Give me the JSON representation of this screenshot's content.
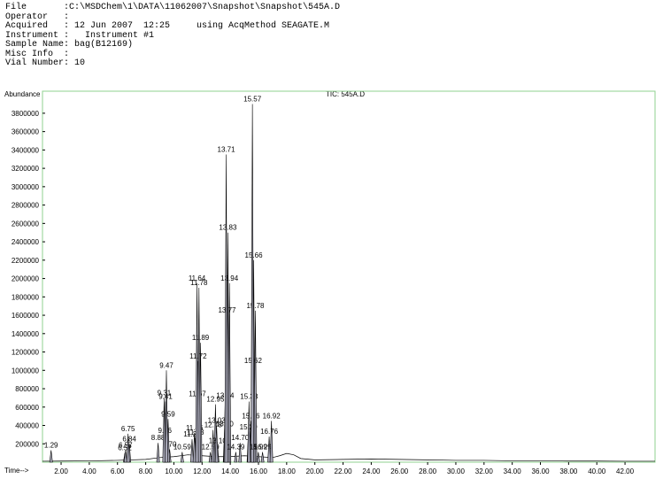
{
  "header": {
    "lines": [
      "File       :C:\\MSDChem\\1\\DATA\\11062007\\Snapshot\\Snapshot\\545A.D",
      "Operator   :",
      "Acquired   : 12 Jun 2007  12:25     using AcqMethod SEAGATE.M",
      "Instrument :   Instrument #1",
      "Sample Name: bag(B12169)",
      "Misc Info  :",
      "Vial Number: 10"
    ]
  },
  "chart_data": {
    "type": "line",
    "title": "TIC: 545A.D",
    "y_label": "Abundance",
    "x_label": "Time-->",
    "color": "#000000",
    "peak_fill": "#a8a8b8",
    "frame_color": "#8fd08f",
    "xlim": [
      0.68,
      44.13
    ],
    "ylim": [
      0,
      4040000
    ],
    "xticks": [
      {
        "value": 2,
        "label": "2.00"
      },
      {
        "value": 4,
        "label": "4.00"
      },
      {
        "value": 6,
        "label": "6.00"
      },
      {
        "value": 8,
        "label": "8.00"
      },
      {
        "value": 10,
        "label": "10.00"
      },
      {
        "value": 12,
        "label": "12.00"
      },
      {
        "value": 14,
        "label": "14.00"
      },
      {
        "value": 16,
        "label": "16.00"
      },
      {
        "value": 18,
        "label": "18.00"
      },
      {
        "value": 20,
        "label": "20.00"
      },
      {
        "value": 22,
        "label": "22.00"
      },
      {
        "value": 24,
        "label": "24.00"
      },
      {
        "value": 26,
        "label": "26.00"
      },
      {
        "value": 28,
        "label": "28.00"
      },
      {
        "value": 30,
        "label": "30.00"
      },
      {
        "value": 32,
        "label": "32.00"
      },
      {
        "value": 34,
        "label": "34.00"
      },
      {
        "value": 36,
        "label": "36.00"
      },
      {
        "value": 38,
        "label": "38.00"
      },
      {
        "value": 40,
        "label": "40.00"
      },
      {
        "value": 42,
        "label": "42.00"
      }
    ],
    "yticks": [
      200000,
      400000,
      600000,
      800000,
      1000000,
      1200000,
      1400000,
      1600000,
      1800000,
      2000000,
      2200000,
      2400000,
      2600000,
      2800000,
      3000000,
      3200000,
      3400000,
      3600000,
      3800000
    ],
    "x": [
      0.68,
      2,
      4,
      6,
      8,
      9,
      10,
      11,
      12,
      13,
      14,
      15,
      16,
      17,
      17.5,
      18,
      18.5,
      19,
      20,
      22,
      24,
      26,
      28,
      30,
      32,
      34,
      36,
      38,
      40,
      42,
      44.13
    ],
    "values": [
      10000,
      12000,
      14000,
      20000,
      30000,
      50000,
      60000,
      80000,
      70000,
      60000,
      60000,
      70000,
      60000,
      50000,
      70000,
      95000,
      80000,
      40000,
      25000,
      30000,
      35000,
      30000,
      25000,
      20000,
      20000,
      15000,
      15000,
      12000,
      12000,
      10000,
      10000
    ],
    "peaks": [
      {
        "label": "1.29",
        "x": 1.29,
        "y": 130000
      },
      {
        "label": "6.52",
        "x": 6.52,
        "y": 100000
      },
      {
        "label": "6.57",
        "x": 6.57,
        "y": 130000
      },
      {
        "label": "6.84",
        "x": 6.84,
        "y": 200000
      },
      {
        "label": "6.75",
        "x": 6.75,
        "y": 310000
      },
      {
        "label": "8.88",
        "x": 8.88,
        "y": 210000
      },
      {
        "label": "9.70",
        "x": 9.7,
        "y": 140000
      },
      {
        "label": "9.36",
        "x": 9.36,
        "y": 290000
      },
      {
        "label": "9.59",
        "x": 9.59,
        "y": 470000
      },
      {
        "label": "9.41",
        "x": 9.41,
        "y": 660000
      },
      {
        "label": "9.31",
        "x": 9.31,
        "y": 700000
      },
      {
        "label": "9.47",
        "x": 9.47,
        "y": 1000000
      },
      {
        "label": "10.59",
        "x": 10.59,
        "y": 110000
      },
      {
        "label": "11.29",
        "x": 11.29,
        "y": 250000
      },
      {
        "label": "11.53",
        "x": 11.53,
        "y": 270000
      },
      {
        "label": "11.46",
        "x": 11.46,
        "y": 320000
      },
      {
        "label": "11.67",
        "x": 11.67,
        "y": 690000
      },
      {
        "label": "11.72",
        "x": 11.72,
        "y": 1100000
      },
      {
        "label": "11.89",
        "x": 11.89,
        "y": 1300000
      },
      {
        "label": "11.78",
        "x": 11.78,
        "y": 1900000
      },
      {
        "label": "11.64",
        "x": 11.64,
        "y": 1950000
      },
      {
        "label": "12.59",
        "x": 12.59,
        "y": 110000
      },
      {
        "label": "12.78",
        "x": 12.78,
        "y": 350000
      },
      {
        "label": "12.95",
        "x": 12.95,
        "y": 630000
      },
      {
        "label": "13.10",
        "x": 13.1,
        "y": 180000
      },
      {
        "label": "13.03",
        "x": 13.03,
        "y": 400000
      },
      {
        "label": "13.60",
        "x": 13.6,
        "y": 360000
      },
      {
        "label": "13.64",
        "x": 13.64,
        "y": 670000
      },
      {
        "label": "13.77",
        "x": 13.77,
        "y": 1600000
      },
      {
        "label": "13.94",
        "x": 13.94,
        "y": 1950000
      },
      {
        "label": "13.83",
        "x": 13.83,
        "y": 2500000
      },
      {
        "label": "13.71",
        "x": 13.71,
        "y": 3350000
      },
      {
        "label": "14.39",
        "x": 14.39,
        "y": 110000
      },
      {
        "label": "14.70",
        "x": 14.7,
        "y": 210000
      },
      {
        "label": "15.29",
        "x": 15.29,
        "y": 330000
      },
      {
        "label": "15.46",
        "x": 15.46,
        "y": 450000
      },
      {
        "label": "15.33",
        "x": 15.33,
        "y": 660000
      },
      {
        "label": "15.62",
        "x": 15.62,
        "y": 1050000
      },
      {
        "label": "15.78",
        "x": 15.78,
        "y": 1650000
      },
      {
        "label": "15.66",
        "x": 15.66,
        "y": 2200000
      },
      {
        "label": "15.57",
        "x": 15.57,
        "y": 3900000
      },
      {
        "label": "15.99",
        "x": 15.99,
        "y": 110000
      },
      {
        "label": "16.29",
        "x": 16.29,
        "y": 110000
      },
      {
        "label": "16.76",
        "x": 16.76,
        "y": 280000
      },
      {
        "label": "16.92",
        "x": 16.92,
        "y": 450000
      }
    ]
  }
}
